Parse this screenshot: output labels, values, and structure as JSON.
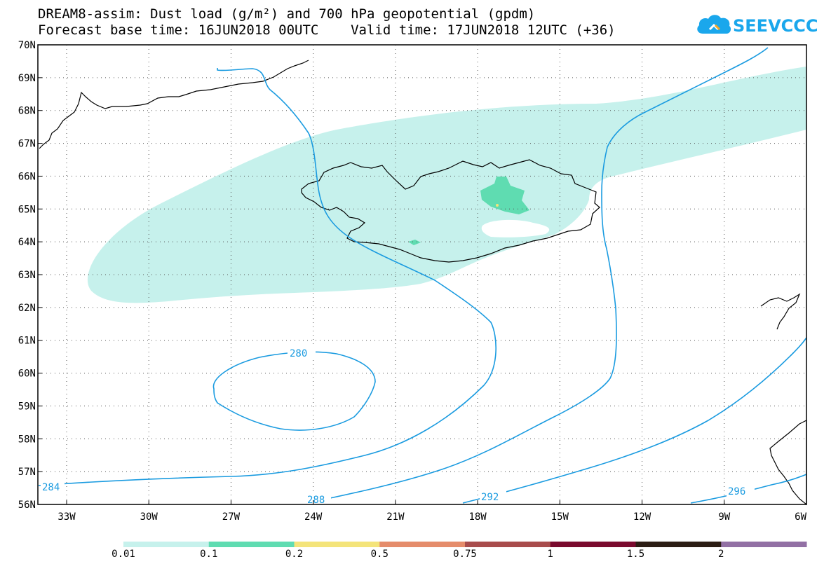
{
  "title": {
    "line1": "DREAM8-assim: Dust load (g/m²) and 700 hPa geopotential (gpdm)",
    "line2": "Forecast base time: 16JUN2018 00UTC    Valid time: 17JUN2018 12UTC (+36)"
  },
  "logo": {
    "text": "SEEVCCC",
    "icon": "cloud-icon"
  },
  "map": {
    "lat_labels": [
      "70N",
      "69N",
      "68N",
      "67N",
      "66N",
      "65N",
      "64N",
      "63N",
      "62N",
      "61N",
      "60N",
      "59N",
      "58N",
      "57N",
      "56N"
    ],
    "lon_labels": [
      "33W",
      "30W",
      "27W",
      "24W",
      "21W",
      "18W",
      "15W",
      "12W",
      "9W",
      "6W"
    ],
    "grid": "dotted"
  },
  "contours": {
    "labels": [
      "280",
      "284",
      "288",
      "292",
      "296"
    ],
    "color": "#1a9be0"
  },
  "colorbar": {
    "labels": [
      "0.01",
      "0.1",
      "0.2",
      "0.5",
      "0.75",
      "1",
      "1.5",
      "2"
    ],
    "colors": [
      "#c6f1ec",
      "#5fdcb1",
      "#f4e47a",
      "#e58c6b",
      "#a84c4c",
      "#7a0a2e",
      "#2c1d14",
      "#9270a4"
    ]
  },
  "colors": {
    "dust_low": "#c6f1ec",
    "dust_mid": "#5fdcb1",
    "dust_high": "#f4e47a",
    "contour": "#1a9be0",
    "coast": "#000000"
  }
}
